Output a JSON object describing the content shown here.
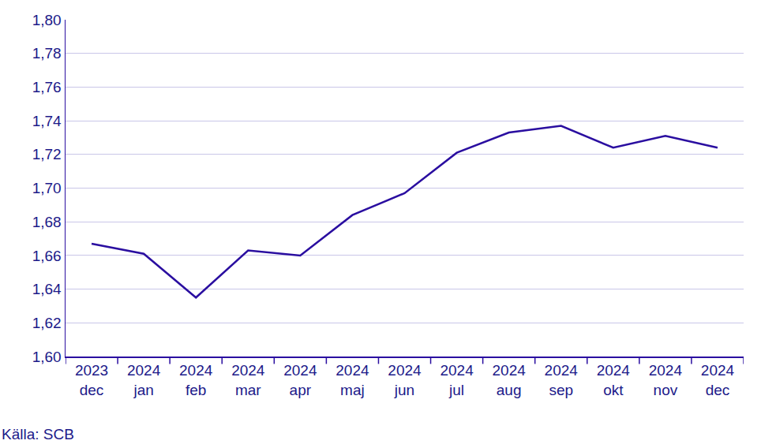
{
  "chart_data": {
    "type": "line",
    "categories": [
      "2023 dec",
      "2024 jan",
      "2024 feb",
      "2024 mar",
      "2024 apr",
      "2024 maj",
      "2024 jun",
      "2024 jul",
      "2024 aug",
      "2024 sep",
      "2024 okt",
      "2024 nov",
      "2024 dec"
    ],
    "values": [
      1.667,
      1.661,
      1.635,
      1.663,
      1.66,
      1.684,
      1.697,
      1.721,
      1.733,
      1.737,
      1.724,
      1.731,
      1.724
    ],
    "color": "#2a0ea0",
    "ylim": [
      1.6,
      1.8
    ],
    "yticks": [
      {
        "value": 1.6,
        "label": "1,60"
      },
      {
        "value": 1.62,
        "label": "1,62"
      },
      {
        "value": 1.64,
        "label": "1,64"
      },
      {
        "value": 1.66,
        "label": "1,66"
      },
      {
        "value": 1.68,
        "label": "1,68"
      },
      {
        "value": 1.7,
        "label": "1,70"
      },
      {
        "value": 1.72,
        "label": "1,72"
      },
      {
        "value": 1.74,
        "label": "1,74"
      },
      {
        "value": 1.76,
        "label": "1,76"
      },
      {
        "value": 1.78,
        "label": "1,78"
      },
      {
        "value": 1.8,
        "label": "1,80"
      }
    ],
    "grid": true,
    "annotations": [
      {
        "text": "Källa: SCB"
      }
    ]
  }
}
